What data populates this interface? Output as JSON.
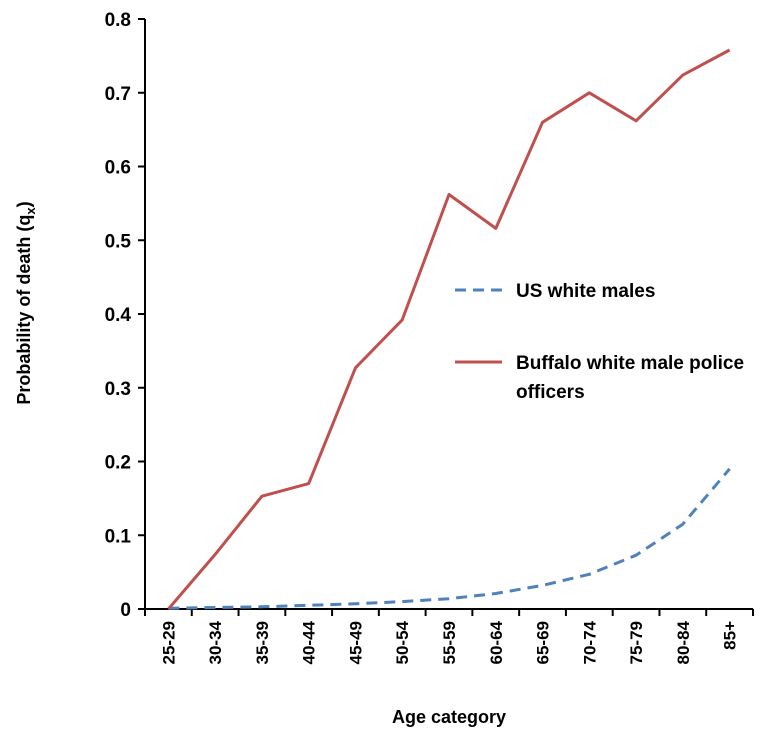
{
  "chart_data": {
    "type": "line",
    "title": "",
    "xlabel": "Age category",
    "ylabel": "Probability of death (q",
    "ylabel_subscript": "x",
    "ylabel_suffix": ")",
    "categories": [
      "25-29",
      "30-34",
      "35-39",
      "40-44",
      "45-49",
      "50-54",
      "55-59",
      "60-64",
      "65-69",
      "70-74",
      "75-79",
      "80-84",
      "85+"
    ],
    "ylim": [
      0,
      0.8
    ],
    "yticks": [
      "0",
      "0.1",
      "0.2",
      "0.3",
      "0.4",
      "0.5",
      "0.6",
      "0.7",
      "0.8"
    ],
    "grid": false,
    "legend_position": "right",
    "series": [
      {
        "name": "US white males",
        "style": "dashed",
        "color": "#4f81bd",
        "values": [
          0.001,
          0.002,
          0.003,
          0.005,
          0.007,
          0.01,
          0.014,
          0.021,
          0.032,
          0.047,
          0.073,
          0.115,
          0.19
        ]
      },
      {
        "name_line1": "Buffalo white male police",
        "name_line2": "officers",
        "style": "solid",
        "color": "#c0504d",
        "values": [
          0.0,
          0.074,
          0.153,
          0.17,
          0.327,
          0.392,
          0.562,
          0.516,
          0.66,
          0.7,
          0.662,
          0.724,
          0.758
        ]
      }
    ]
  }
}
